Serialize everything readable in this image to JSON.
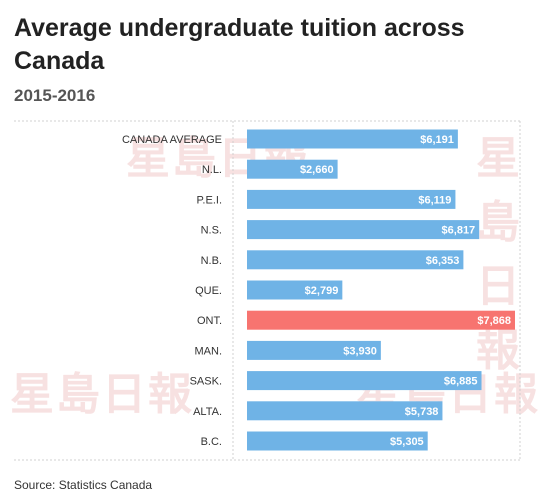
{
  "title": "Average undergraduate tuition across Canada",
  "subtitle": "2015-2016",
  "source": "Source: Statistics Canada",
  "watermark": "星島日報",
  "colors": {
    "bar": "#6fb3e6",
    "highlight": "#f77470",
    "label": "#333333",
    "value_text": "#ffffff"
  },
  "chart_data": {
    "type": "bar",
    "orientation": "horizontal",
    "categories": [
      "CANADA AVERAGE",
      "N.L.",
      "P.E.I.",
      "N.S.",
      "N.B.",
      "QUE.",
      "ONT.",
      "MAN.",
      "SASK.",
      "ALTA.",
      "B.C."
    ],
    "values": [
      6191,
      2660,
      6119,
      6817,
      6353,
      2799,
      7868,
      3930,
      6885,
      5738,
      5305
    ],
    "value_labels": [
      "$6,191",
      "$2,660",
      "$6,119",
      "$6,817",
      "$6,353",
      "$2,799",
      "$7,868",
      "$3,930",
      "$6,885",
      "$5,738",
      "$5,305"
    ],
    "highlight_category": "ONT.",
    "xlim": [
      0,
      7868
    ],
    "grid": false
  }
}
